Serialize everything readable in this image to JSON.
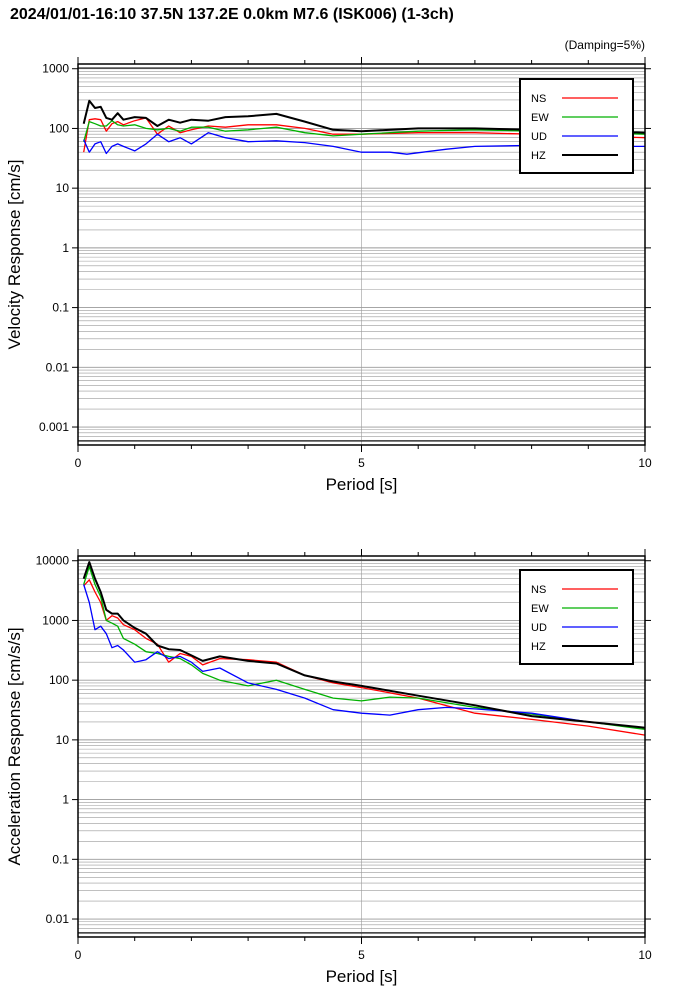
{
  "title": "2024/01/01-16:10 37.5N 137.2E 0.0km M7.6 (ISK006) (1-3ch)",
  "damping_note": "(Damping=5%)",
  "colors": {
    "NS": "#ff0000",
    "EW": "#00b000",
    "UD": "#0000ff",
    "HZ": "#000000"
  },
  "chart_data": [
    {
      "type": "line",
      "xlabel": "Period [s]",
      "ylabel": "Velocity Response [cm/s]",
      "xlim": [
        0,
        10
      ],
      "ylim": [
        0.0005,
        1200
      ],
      "yscale": "log",
      "x_ticks": [
        "0",
        "5",
        "10"
      ],
      "y_ticks": [
        "0.001",
        "0.01",
        "0.1",
        "1",
        "10",
        "100",
        "1000"
      ],
      "grid": true,
      "legend": "top-right",
      "series": [
        {
          "name": "NS",
          "x": [
            0.1,
            0.2,
            0.3,
            0.4,
            0.5,
            0.6,
            0.7,
            0.8,
            1.0,
            1.2,
            1.4,
            1.6,
            1.8,
            2.0,
            2.3,
            2.6,
            3.0,
            3.5,
            4.0,
            4.5,
            5.0,
            6.0,
            7.0,
            8.0,
            9.0,
            10.0
          ],
          "y": [
            40,
            140,
            145,
            140,
            90,
            120,
            130,
            115,
            135,
            150,
            80,
            110,
            85,
            95,
            110,
            105,
            115,
            115,
            100,
            80,
            80,
            85,
            85,
            80,
            75,
            70
          ]
        },
        {
          "name": "EW",
          "x": [
            0.1,
            0.2,
            0.3,
            0.4,
            0.5,
            0.6,
            0.7,
            0.8,
            1.0,
            1.2,
            1.4,
            1.6,
            1.8,
            2.0,
            2.3,
            2.6,
            3.0,
            3.5,
            4.0,
            4.5,
            5.0,
            6.0,
            7.0,
            8.0,
            9.0,
            10.0
          ],
          "y": [
            60,
            130,
            120,
            110,
            110,
            135,
            115,
            110,
            115,
            100,
            95,
            100,
            90,
            105,
            105,
            90,
            95,
            105,
            85,
            75,
            80,
            90,
            95,
            90,
            85,
            80
          ]
        },
        {
          "name": "UD",
          "x": [
            0.1,
            0.2,
            0.3,
            0.4,
            0.5,
            0.6,
            0.7,
            0.8,
            1.0,
            1.2,
            1.4,
            1.6,
            1.8,
            2.0,
            2.3,
            2.6,
            3.0,
            3.5,
            4.0,
            4.5,
            5.0,
            5.5,
            5.8,
            6.5,
            7.0,
            8.0,
            9.0,
            10.0
          ],
          "y": [
            65,
            40,
            55,
            60,
            38,
            50,
            55,
            50,
            42,
            55,
            80,
            60,
            70,
            55,
            85,
            70,
            60,
            62,
            58,
            50,
            40,
            40,
            37,
            45,
            50,
            52,
            50,
            50
          ]
        },
        {
          "name": "HZ",
          "x": [
            0.1,
            0.2,
            0.3,
            0.4,
            0.5,
            0.6,
            0.7,
            0.8,
            1.0,
            1.2,
            1.4,
            1.6,
            1.8,
            2.0,
            2.3,
            2.6,
            3.0,
            3.5,
            4.0,
            4.5,
            5.0,
            6.0,
            7.0,
            8.0,
            9.0,
            10.0
          ],
          "y": [
            120,
            290,
            220,
            230,
            150,
            140,
            180,
            140,
            155,
            150,
            110,
            140,
            125,
            140,
            135,
            155,
            160,
            175,
            130,
            95,
            90,
            100,
            100,
            95,
            90,
            85
          ]
        }
      ]
    },
    {
      "type": "line",
      "xlabel": "Period [s]",
      "ylabel": "Acceleration Response [cm/s/s]",
      "xlim": [
        0,
        10
      ],
      "ylim": [
        0.005,
        12000
      ],
      "yscale": "log",
      "x_ticks": [
        "0",
        "5",
        "10"
      ],
      "y_ticks": [
        "0.01",
        "0.1",
        "1",
        "10",
        "100",
        "1000",
        "10000"
      ],
      "grid": true,
      "legend": "top-right",
      "series": [
        {
          "name": "NS",
          "x": [
            0.1,
            0.2,
            0.3,
            0.4,
            0.5,
            0.6,
            0.7,
            0.8,
            1.0,
            1.2,
            1.4,
            1.6,
            1.8,
            2.0,
            2.2,
            2.5,
            3.0,
            3.5,
            4.0,
            4.5,
            5.0,
            6.0,
            7.0,
            8.0,
            9.0,
            10.0
          ],
          "y": [
            3800,
            4800,
            3000,
            2000,
            1000,
            1200,
            1100,
            850,
            700,
            500,
            400,
            200,
            280,
            250,
            180,
            230,
            220,
            200,
            120,
            90,
            75,
            50,
            28,
            22,
            17,
            12
          ]
        },
        {
          "name": "EW",
          "x": [
            0.1,
            0.2,
            0.3,
            0.4,
            0.5,
            0.6,
            0.7,
            0.8,
            1.0,
            1.2,
            1.4,
            1.6,
            1.8,
            2.0,
            2.2,
            2.5,
            3.0,
            3.5,
            4.0,
            4.5,
            5.0,
            5.5,
            6.0,
            7.0,
            8.0,
            9.0,
            10.0
          ],
          "y": [
            4000,
            8000,
            4000,
            2500,
            1000,
            900,
            800,
            500,
            400,
            300,
            280,
            250,
            230,
            180,
            130,
            100,
            80,
            100,
            70,
            50,
            45,
            52,
            50,
            35,
            27,
            20,
            15
          ]
        },
        {
          "name": "UD",
          "x": [
            0.1,
            0.2,
            0.3,
            0.4,
            0.5,
            0.6,
            0.7,
            0.8,
            1.0,
            1.2,
            1.4,
            1.6,
            1.8,
            2.0,
            2.2,
            2.5,
            3.0,
            3.5,
            4.0,
            4.5,
            5.0,
            5.5,
            6.0,
            6.5,
            7.0,
            8.0,
            9.0,
            10.0
          ],
          "y": [
            4000,
            2000,
            700,
            800,
            600,
            350,
            380,
            320,
            200,
            220,
            300,
            230,
            250,
            200,
            140,
            160,
            90,
            70,
            50,
            32,
            28,
            26,
            32,
            35,
            33,
            28,
            20,
            16
          ]
        },
        {
          "name": "HZ",
          "x": [
            0.1,
            0.2,
            0.3,
            0.4,
            0.5,
            0.6,
            0.7,
            0.8,
            1.0,
            1.2,
            1.4,
            1.6,
            1.8,
            2.0,
            2.2,
            2.5,
            3.0,
            3.5,
            4.0,
            4.5,
            5.0,
            6.0,
            7.0,
            8.0,
            9.0,
            10.0
          ],
          "y": [
            5000,
            9500,
            5000,
            3000,
            1500,
            1300,
            1300,
            1000,
            750,
            600,
            380,
            330,
            320,
            260,
            210,
            250,
            210,
            190,
            120,
            95,
            80,
            55,
            38,
            25,
            20,
            16
          ]
        }
      ]
    }
  ]
}
